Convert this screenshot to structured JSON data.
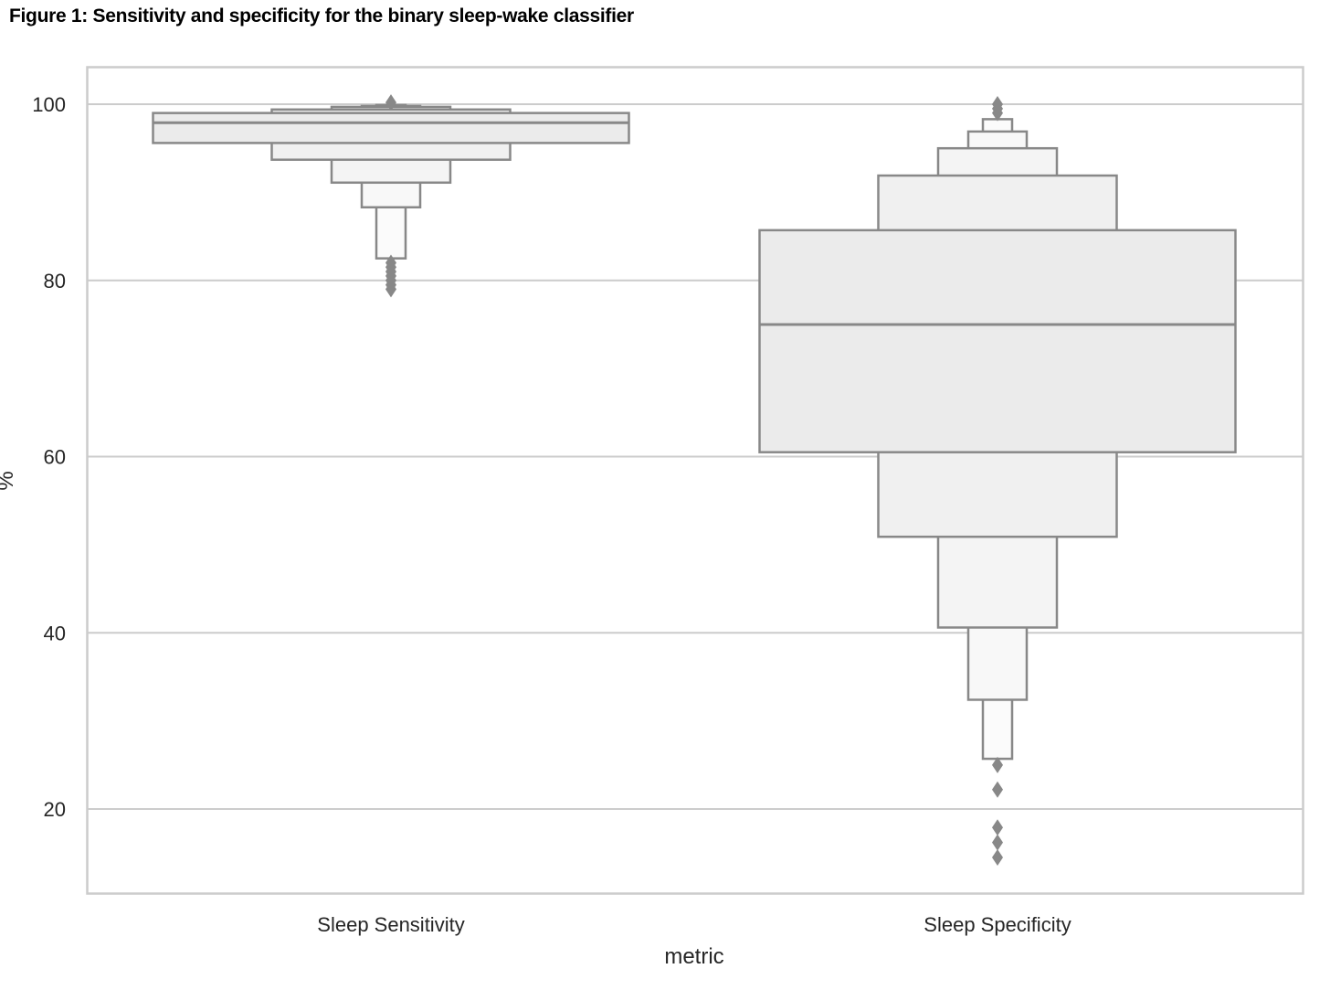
{
  "figure": {
    "title": "Figure 1: Sensitivity and specificity for the binary sleep-wake classifier"
  },
  "chart_data": {
    "type": "boxen",
    "title": "Figure 1: Sensitivity and specificity for the binary sleep-wake classifier",
    "xlabel": "metric",
    "ylabel": "%",
    "ylim": [
      10.5,
      104.3
    ],
    "yticks": [
      20,
      40,
      60,
      80,
      100
    ],
    "ytick_labels": [
      "20",
      "40",
      "60",
      "80",
      "100"
    ],
    "grid": "horizontal",
    "legend": null,
    "categories": [
      "Sleep Sensitivity",
      "Sleep Specificity"
    ],
    "series": [
      {
        "name": "Sleep Sensitivity",
        "median": 97.9,
        "letter_values": [
          {
            "level": 1,
            "low": 95.6,
            "high": 99.0
          },
          {
            "level": 2,
            "low": 93.7,
            "high": 99.4
          },
          {
            "level": 3,
            "low": 91.1,
            "high": 99.7
          },
          {
            "level": 4,
            "low": 88.3,
            "high": 99.8
          },
          {
            "level": 5,
            "low": 82.5,
            "high": 99.9
          }
        ],
        "outliers": [
          82.0,
          81.5,
          81.0,
          80.5,
          80.0,
          79.5,
          79.0,
          100.2
        ]
      },
      {
        "name": "Sleep Specificity",
        "median": 75.0,
        "letter_values": [
          {
            "level": 1,
            "low": 60.5,
            "high": 85.7
          },
          {
            "level": 2,
            "low": 50.9,
            "high": 91.9
          },
          {
            "level": 3,
            "low": 40.6,
            "high": 95.0
          },
          {
            "level": 4,
            "low": 32.4,
            "high": 96.9
          },
          {
            "level": 5,
            "low": 25.7,
            "high": 98.3
          }
        ],
        "outliers": [
          99.0,
          99.5,
          100.0,
          25.0,
          22.2,
          17.9,
          16.2,
          14.5
        ]
      }
    ]
  },
  "colors": {
    "box_edge": "#888888",
    "fills": [
      "#ebebeb",
      "#f0f0f0",
      "#f4f4f4",
      "#f8f8f8",
      "#fbfbfb"
    ],
    "grid": "#cccccc",
    "frame": "#cccccc",
    "outlier": "#888888",
    "text": "#262626"
  }
}
